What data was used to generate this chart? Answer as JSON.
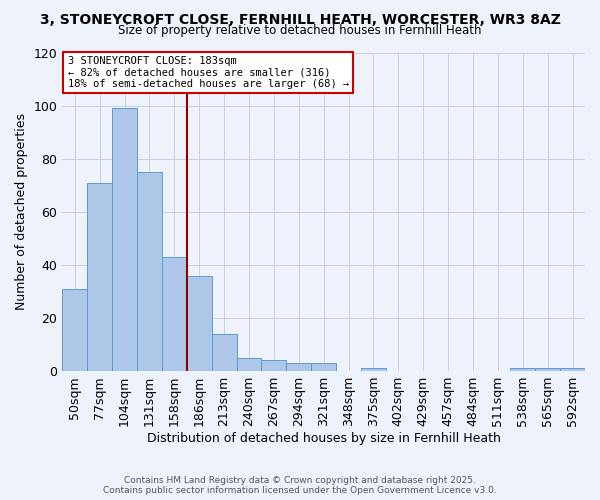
{
  "title1": "3, STONEYCROFT CLOSE, FERNHILL HEATH, WORCESTER, WR3 8AZ",
  "title2": "Size of property relative to detached houses in Fernhill Heath",
  "xlabel": "Distribution of detached houses by size in Fernhill Heath",
  "ylabel": "Number of detached properties",
  "bin_labels": [
    "50sqm",
    "77sqm",
    "104sqm",
    "131sqm",
    "158sqm",
    "186sqm",
    "213sqm",
    "240sqm",
    "267sqm",
    "294sqm",
    "321sqm",
    "348sqm",
    "375sqm",
    "402sqm",
    "429sqm",
    "457sqm",
    "484sqm",
    "511sqm",
    "538sqm",
    "565sqm",
    "592sqm"
  ],
  "bar_heights": [
    31,
    71,
    99,
    75,
    43,
    36,
    14,
    5,
    4,
    3,
    3,
    0,
    1,
    0,
    0,
    0,
    0,
    0,
    1,
    1,
    1
  ],
  "bar_color": "#aec6e8",
  "bar_edge_color": "#5b9bd5",
  "property_line_label": "3 STONEYCROFT CLOSE: 183sqm",
  "annotation_line1": "← 82% of detached houses are smaller (316)",
  "annotation_line2": "18% of semi-detached houses are larger (68) →",
  "line_color": "#8b0000",
  "box_edge_color": "#cc0000",
  "footer1": "Contains HM Land Registry data © Crown copyright and database right 2025.",
  "footer2": "Contains public sector information licensed under the Open Government Licence v3.0.",
  "ylim": [
    0,
    120
  ],
  "background_color": "#eef2fb",
  "grid_color": "#c8d0e8"
}
